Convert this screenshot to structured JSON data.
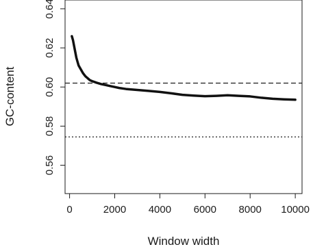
{
  "chart_data": {
    "type": "line",
    "title": "",
    "xlabel": "Window width",
    "ylabel": "GC-content",
    "xlim": [
      -200,
      10300
    ],
    "ylim": [
      0.5455,
      0.6445
    ],
    "x_ticks": [
      0,
      2000,
      4000,
      6000,
      8000,
      10000
    ],
    "y_ticks": [
      0.56,
      0.58,
      0.6,
      0.62,
      0.64
    ],
    "x_tick_labels": [
      "0",
      "2000",
      "4000",
      "6000",
      "8000",
      "10000"
    ],
    "y_tick_labels": [
      "0.56",
      "0.58",
      "0.60",
      "0.62",
      "0.64"
    ],
    "grid": false,
    "series": [
      {
        "color": "#111111",
        "x": [
          100,
          150,
          200,
          250,
          300,
          350,
          400,
          500,
          600,
          700,
          800,
          900,
          1000,
          1200,
          1400,
          1600,
          1800,
          2000,
          2200,
          2500,
          3000,
          3500,
          4000,
          4500,
          5000,
          5500,
          6000,
          6500,
          7000,
          7500,
          8000,
          8500,
          9000,
          9500,
          10000
        ],
        "y": [
          0.626,
          0.624,
          0.621,
          0.618,
          0.615,
          0.613,
          0.611,
          0.609,
          0.607,
          0.6055,
          0.6045,
          0.6035,
          0.603,
          0.6022,
          0.6015,
          0.601,
          0.6005,
          0.6,
          0.5995,
          0.599,
          0.5985,
          0.598,
          0.5975,
          0.5968,
          0.596,
          0.5956,
          0.5953,
          0.5955,
          0.5958,
          0.5955,
          0.5952,
          0.5945,
          0.594,
          0.5937,
          0.5935
        ]
      }
    ],
    "reference_lines": [
      {
        "y": 0.602,
        "style": "dashed"
      },
      {
        "y": 0.5745,
        "style": "dotted"
      }
    ]
  }
}
